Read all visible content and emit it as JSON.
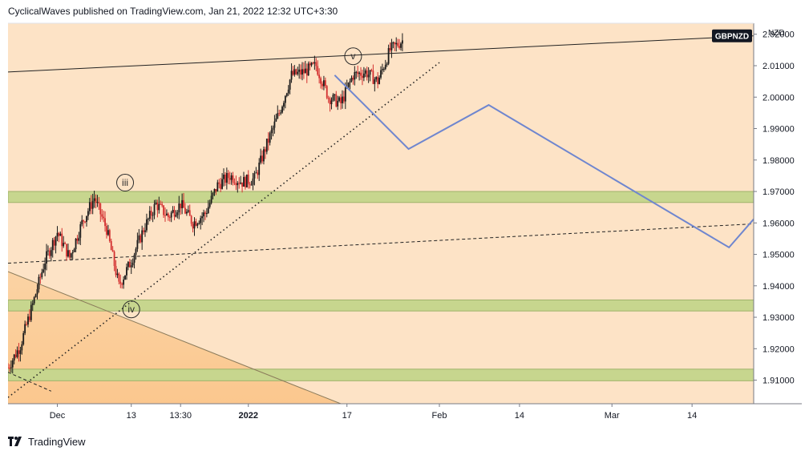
{
  "header": {
    "published": "CyclicalWaves published on TradingView.com, Jan 21, 2022 12:32 UTC+3:30"
  },
  "footer": {
    "brand": "TradingView",
    "logo_icon": "tradingview-logo-icon"
  },
  "colors": {
    "background_plot": "#fde3c6",
    "zone_fill": "#c7d68e",
    "zone_border": "#9fb36a",
    "projection": "#6f86cf",
    "candle_up": "#1a1a1a",
    "candle_down": "#d32f2f",
    "line": "#222222",
    "triangle": "#fbcd9b"
  },
  "chart_data": {
    "type": "candlestick",
    "symbol": "GBPNZD",
    "currency": "NZD",
    "y_axis": {
      "range": [
        1.9025,
        2.0235
      ],
      "ticks": [
        "2.02000",
        "2.01000",
        "2.00000",
        "1.99000",
        "1.98000",
        "1.97000",
        "1.96000",
        "1.95000",
        "1.94000",
        "1.93000",
        "1.92000",
        "1.91000"
      ]
    },
    "x_axis": {
      "range": [
        "2021-11-23",
        "2022-03-24"
      ],
      "ticks": [
        {
          "label": "Dec",
          "date": "2021-12-01"
        },
        {
          "label": "13",
          "date": "2021-12-13"
        },
        {
          "label": "13:30",
          "date": "2021-12-21"
        },
        {
          "label": "2022",
          "date": "2022-01-01"
        },
        {
          "label": "17",
          "date": "2022-01-17"
        },
        {
          "label": "Feb",
          "date": "2022-02-01"
        },
        {
          "label": "14",
          "date": "2022-02-14"
        },
        {
          "label": "Mar",
          "date": "2022-03-01"
        },
        {
          "label": "14",
          "date": "2022-03-14"
        }
      ]
    },
    "price_path": [
      [
        "2021-11-23",
        1.914
      ],
      [
        "2021-11-25",
        1.921
      ],
      [
        "2021-11-27",
        1.934
      ],
      [
        "2021-11-29",
        1.948
      ],
      [
        "2021-12-01",
        1.957
      ],
      [
        "2021-12-03",
        1.949
      ],
      [
        "2021-12-05",
        1.96
      ],
      [
        "2021-12-07",
        1.968
      ],
      [
        "2021-12-09",
        1.958
      ],
      [
        "2021-12-11",
        1.94
      ],
      [
        "2021-12-13",
        1.948
      ],
      [
        "2021-12-15",
        1.958
      ],
      [
        "2021-12-17",
        1.966
      ],
      [
        "2021-12-19",
        1.962
      ],
      [
        "2021-12-21",
        1.966
      ],
      [
        "2021-12-23",
        1.96
      ],
      [
        "2021-12-25",
        1.963
      ],
      [
        "2021-12-27",
        1.972
      ],
      [
        "2021-12-29",
        1.975
      ],
      [
        "2021-12-31",
        1.973
      ],
      [
        "2022-01-02",
        1.974
      ],
      [
        "2022-01-04",
        1.985
      ],
      [
        "2022-01-06",
        1.995
      ],
      [
        "2022-01-08",
        2.007
      ],
      [
        "2022-01-10",
        2.008
      ],
      [
        "2022-01-12",
        2.01
      ],
      [
        "2022-01-14",
        2.0
      ],
      [
        "2022-01-16",
        1.998
      ],
      [
        "2022-01-18",
        2.007
      ],
      [
        "2022-01-20",
        2.008
      ],
      [
        "2022-01-22",
        2.005
      ],
      [
        "2022-01-24",
        2.015
      ],
      [
        "2022-01-26",
        2.018
      ]
    ],
    "zones": [
      {
        "from": 1.9665,
        "to": 1.97
      },
      {
        "from": 1.932,
        "to": 1.9355
      },
      {
        "from": 1.9098,
        "to": 1.9135
      }
    ],
    "lines": [
      {
        "name": "upper-trendline",
        "style": "solid",
        "points": [
          [
            "2021-11-23",
            2.008
          ],
          [
            "2022-03-24",
            2.0195
          ]
        ]
      },
      {
        "name": "midline",
        "style": "dashed",
        "points": [
          [
            "2021-11-23",
            1.9472
          ],
          [
            "2022-03-24",
            1.9597
          ]
        ]
      },
      {
        "name": "support-trendline",
        "style": "dotted",
        "points": [
          [
            "2021-11-23",
            1.9045
          ],
          [
            "2022-02-01",
            2.011
          ]
        ]
      },
      {
        "name": "falling-line",
        "style": "solid",
        "points": [
          [
            "2021-11-23",
            1.9445
          ],
          [
            "2022-01-16",
            1.9025
          ]
        ]
      },
      {
        "name": "lower-dashed",
        "style": "dashed",
        "points": [
          [
            "2021-11-23",
            1.9125
          ],
          [
            "2021-11-30",
            1.9065
          ]
        ]
      }
    ],
    "projection": [
      [
        "2022-01-15",
        2.007
      ],
      [
        "2022-01-27",
        1.9835
      ],
      [
        "2022-02-09",
        1.9975
      ],
      [
        "2022-03-20",
        1.9522
      ],
      [
        "2022-03-24",
        1.9612
      ]
    ],
    "wave_labels": [
      {
        "label": "iii",
        "date": "2021-12-12",
        "price": 1.9728
      },
      {
        "label": "iv",
        "date": "2021-12-13",
        "price": 1.9325
      },
      {
        "label": "v",
        "date": "2022-01-18",
        "price": 2.013
      }
    ],
    "last_price_label": {
      "text": "GBPNZD",
      "price": 2.0195
    }
  }
}
